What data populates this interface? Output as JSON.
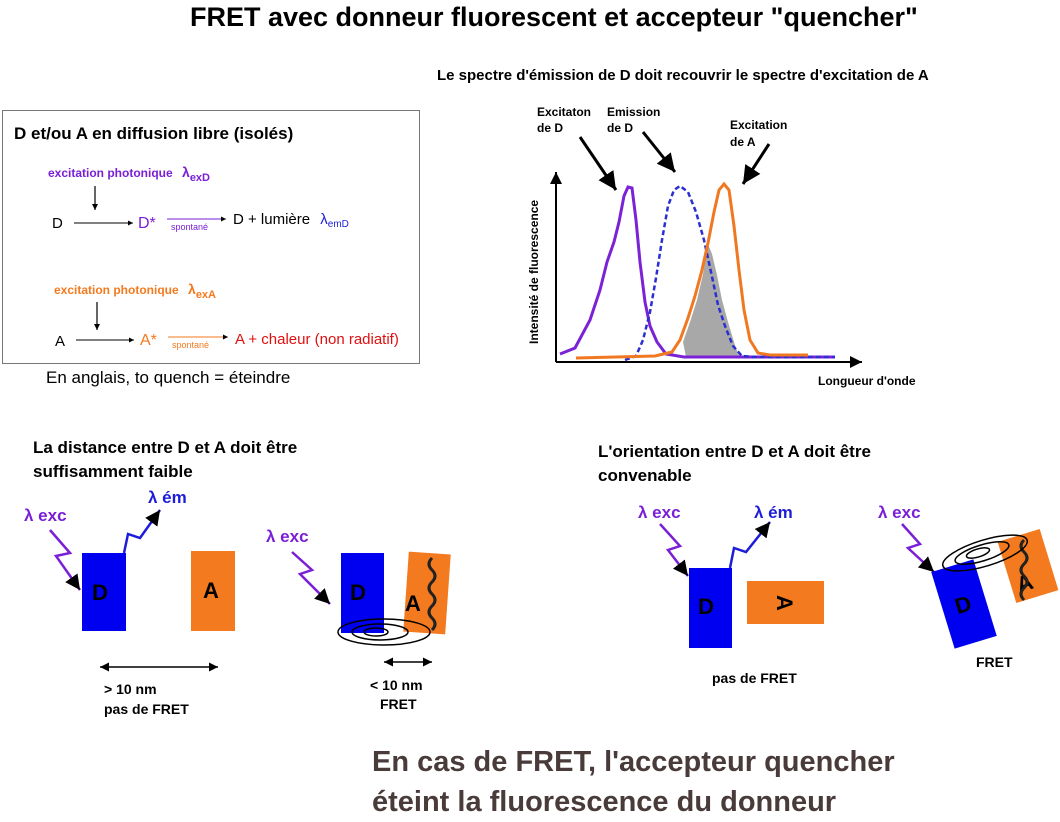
{
  "header": {
    "title": "FRET avec  donneur fluorescent et accepteur \"quencher\"",
    "spectrum_title": "Le spectre d'émission de D doit recouvrir le spectre d'excitation de A"
  },
  "isolated_box": {
    "title": "D et/ou A en diffusion libre (isolés)",
    "donor": {
      "excitation_label": "excitation photonique",
      "lambda_symbol": "λ",
      "lambda_sub": "exD",
      "ground": "D",
      "excited": "D*",
      "arrow_label": "spontané",
      "product": "D + lumière",
      "product_lambda_sub": "emD"
    },
    "acceptor": {
      "excitation_label": "excitation photonique",
      "lambda_symbol": "λ",
      "lambda_sub": "exA",
      "ground": "A",
      "excited": "A*",
      "arrow_label": "spontané",
      "product": "A + chaleur (non radiatif)"
    },
    "note": "En anglais, to quench = éteindre"
  },
  "spectrum": {
    "y_axis_label": "Intensité de fluorescence",
    "x_axis_label": "Longueur d'onde",
    "labels": {
      "exc_d_line1": "Excitaton",
      "exc_d_line2": "de D",
      "em_d_line1": "Emission",
      "em_d_line2": "de D",
      "exc_a_line1": "Excitation",
      "exc_a_line2": "de A"
    },
    "colors": {
      "exc_d": "#7b22d6",
      "em_d": "#2b2fd1",
      "exc_a": "#f07820",
      "overlap": "#a8a8a8"
    }
  },
  "distance": {
    "title_line1": "La distance entre D et A doit être",
    "title_line2": "suffisamment faible",
    "lambda_exc": "λ exc",
    "lambda_em": "λ ém",
    "d_label": "D",
    "a_label": "A",
    "far_line1": "> 10 nm",
    "far_line2": "pas de FRET",
    "near_line1": "< 10 nm",
    "near_line2": "FRET"
  },
  "orientation": {
    "title_line1": "L'orientation entre D et A doit être",
    "title_line2": "convenable",
    "lambda_exc": "λ exc",
    "lambda_em": "λ ém",
    "d_label": "D",
    "a_label": "A",
    "no_fret": "pas de FRET",
    "fret": "FRET"
  },
  "conclusion": {
    "line1": "En cas de FRET, l'accepteur quencher",
    "line2": "éteint la fluorescence du donneur"
  },
  "colors": {
    "donor_blue": "#0000f0",
    "acceptor_orange": "#f37a1f",
    "purple": "#7a1fd6",
    "blue_text": "#1d1dd8",
    "red_text": "#e01010"
  }
}
